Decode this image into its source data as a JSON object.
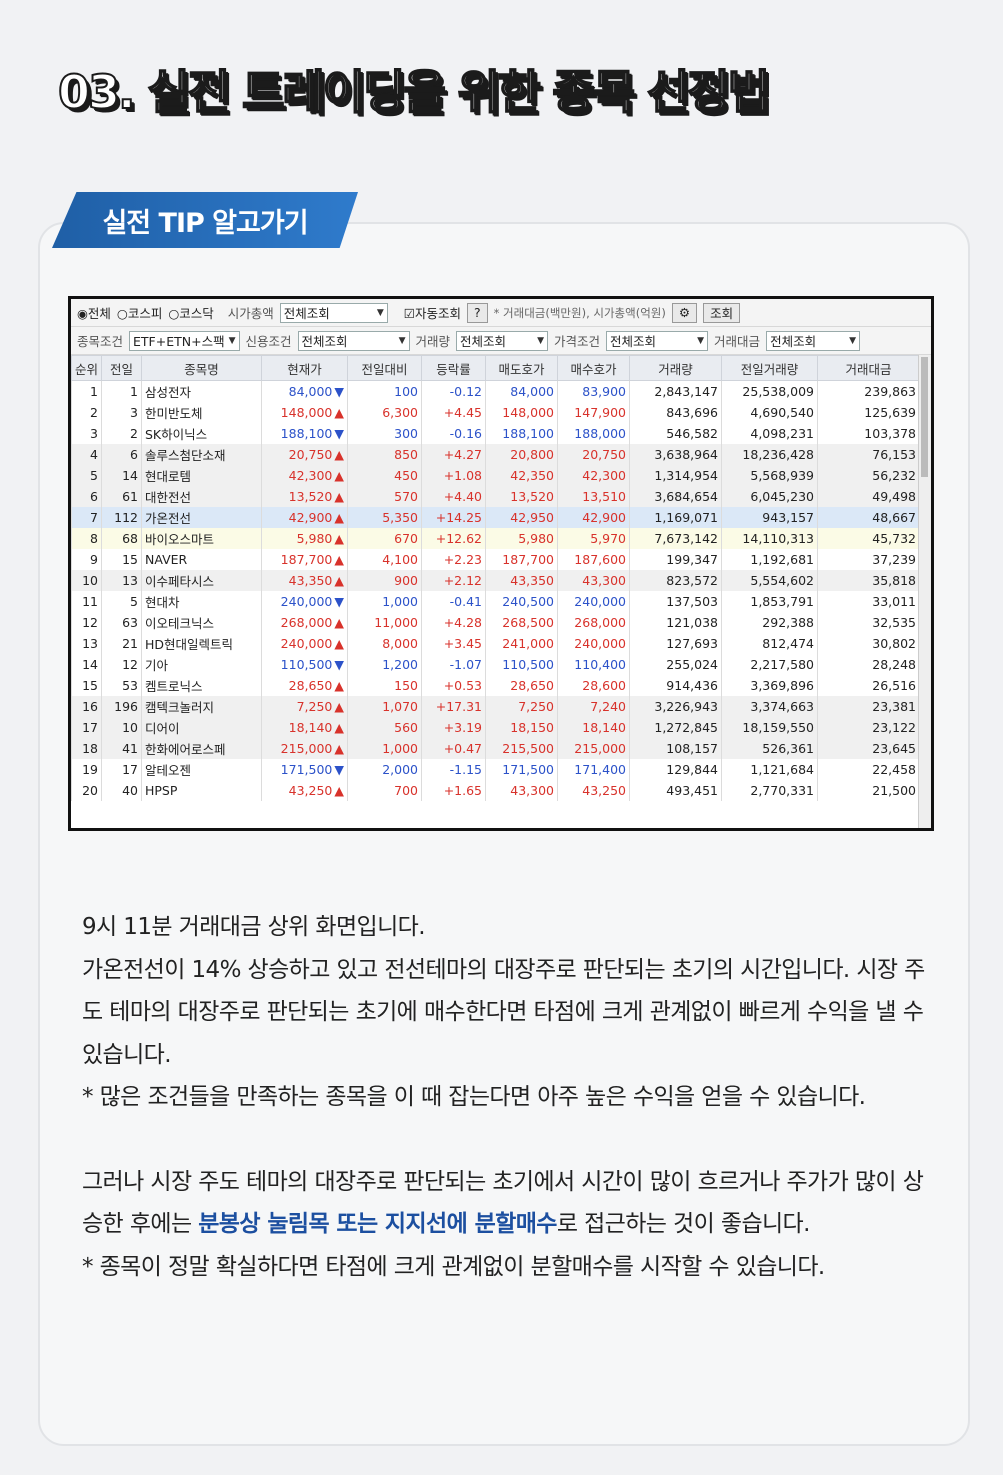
{
  "page_title": "03. 실전 트레이딩을 위한 종목 선정법",
  "tip_label": "실전 TIP 알고가기",
  "controls": {
    "row1": {
      "radio_all": "◉전체",
      "radio_kospi": "○코스피",
      "radio_kosdaq": "○코스닥",
      "market_cap_label": "시가총액",
      "market_cap_value": "전체조회",
      "auto_check": "☑자동조회",
      "help": "?",
      "unit_note": "* 거래대금(백만원), 시가총액(억원)",
      "settings": "⚙",
      "query": "조회"
    },
    "row2": {
      "item_cond_label": "종목조건",
      "item_cond_value": "ETF+ETN+스팩",
      "credit_label": "신용조건",
      "credit_value": "전체조회",
      "volume_label": "거래량",
      "volume_value": "전체조회",
      "price_label": "가격조건",
      "price_value": "전체조회",
      "amount_label": "거래대금",
      "amount_value": "전체조회"
    }
  },
  "table": {
    "headers": [
      "순위",
      "전일",
      "종목명",
      "현재가",
      "전일대비",
      "등락률",
      "매도호가",
      "매수호가",
      "거래량",
      "전일거래량",
      "거래대금"
    ],
    "rows": [
      {
        "rank": "1",
        "prev": "1",
        "name": "삼성전자",
        "price": "84,000",
        "dir": "▼",
        "diff": "100",
        "rate": "-0.12",
        "ask": "84,000",
        "bid": "83,900",
        "vol": "2,843,147",
        "pvol": "25,538,009",
        "amt": "239,863",
        "cls": "dn",
        "style": ""
      },
      {
        "rank": "2",
        "prev": "3",
        "name": "한미반도체",
        "price": "148,000",
        "dir": "▲",
        "diff": "6,300",
        "rate": "+4.45",
        "ask": "148,000",
        "bid": "147,900",
        "vol": "843,696",
        "pvol": "4,690,540",
        "amt": "125,639",
        "cls": "up",
        "style": ""
      },
      {
        "rank": "3",
        "prev": "2",
        "name": "SK하이닉스",
        "price": "188,100",
        "dir": "▼",
        "diff": "300",
        "rate": "-0.16",
        "ask": "188,100",
        "bid": "188,000",
        "vol": "546,582",
        "pvol": "4,098,231",
        "amt": "103,378",
        "cls": "dn",
        "style": ""
      },
      {
        "rank": "4",
        "prev": "6",
        "name": "솔루스첨단소재",
        "price": "20,750",
        "dir": "▲",
        "diff": "850",
        "rate": "+4.27",
        "ask": "20,800",
        "bid": "20,750",
        "vol": "3,638,964",
        "pvol": "18,236,428",
        "amt": "76,153",
        "cls": "up",
        "style": "shade"
      },
      {
        "rank": "5",
        "prev": "14",
        "name": "현대로템",
        "price": "42,300",
        "dir": "▲",
        "diff": "450",
        "rate": "+1.08",
        "ask": "42,350",
        "bid": "42,300",
        "vol": "1,314,954",
        "pvol": "5,568,939",
        "amt": "56,232",
        "cls": "up",
        "style": "shade"
      },
      {
        "rank": "6",
        "prev": "61",
        "name": "대한전선",
        "price": "13,520",
        "dir": "▲",
        "diff": "570",
        "rate": "+4.40",
        "ask": "13,520",
        "bid": "13,510",
        "vol": "3,684,654",
        "pvol": "6,045,230",
        "amt": "49,498",
        "cls": "up",
        "style": "shade"
      },
      {
        "rank": "7",
        "prev": "112",
        "name": "가온전선",
        "price": "42,900",
        "dir": "▲",
        "diff": "5,350",
        "rate": "+14.25",
        "ask": "42,950",
        "bid": "42,900",
        "vol": "1,169,071",
        "pvol": "943,157",
        "amt": "48,667",
        "cls": "up",
        "style": "hl"
      },
      {
        "rank": "8",
        "prev": "68",
        "name": "바이오스마트",
        "price": "5,980",
        "dir": "▲",
        "diff": "670",
        "rate": "+12.62",
        "ask": "5,980",
        "bid": "5,970",
        "vol": "7,673,142",
        "pvol": "14,110,313",
        "amt": "45,732",
        "cls": "up",
        "style": "yellow"
      },
      {
        "rank": "9",
        "prev": "15",
        "name": "NAVER",
        "price": "187,700",
        "dir": "▲",
        "diff": "4,100",
        "rate": "+2.23",
        "ask": "187,700",
        "bid": "187,600",
        "vol": "199,347",
        "pvol": "1,192,681",
        "amt": "37,239",
        "cls": "up",
        "style": ""
      },
      {
        "rank": "10",
        "prev": "13",
        "name": "이수페타시스",
        "price": "43,350",
        "dir": "▲",
        "diff": "900",
        "rate": "+2.12",
        "ask": "43,350",
        "bid": "43,300",
        "vol": "823,572",
        "pvol": "5,554,602",
        "amt": "35,818",
        "cls": "up",
        "style": "shade"
      },
      {
        "rank": "11",
        "prev": "5",
        "name": "현대차",
        "price": "240,000",
        "dir": "▼",
        "diff": "1,000",
        "rate": "-0.41",
        "ask": "240,500",
        "bid": "240,000",
        "vol": "137,503",
        "pvol": "1,853,791",
        "amt": "33,011",
        "cls": "dn",
        "style": ""
      },
      {
        "rank": "12",
        "prev": "63",
        "name": "이오테크닉스",
        "price": "268,000",
        "dir": "▲",
        "diff": "11,000",
        "rate": "+4.28",
        "ask": "268,500",
        "bid": "268,000",
        "vol": "121,038",
        "pvol": "292,388",
        "amt": "32,535",
        "cls": "up",
        "style": ""
      },
      {
        "rank": "13",
        "prev": "21",
        "name": "HD현대일렉트릭",
        "price": "240,000",
        "dir": "▲",
        "diff": "8,000",
        "rate": "+3.45",
        "ask": "241,000",
        "bid": "240,000",
        "vol": "127,693",
        "pvol": "812,474",
        "amt": "30,802",
        "cls": "up",
        "style": ""
      },
      {
        "rank": "14",
        "prev": "12",
        "name": "기아",
        "price": "110,500",
        "dir": "▼",
        "diff": "1,200",
        "rate": "-1.07",
        "ask": "110,500",
        "bid": "110,400",
        "vol": "255,024",
        "pvol": "2,217,580",
        "amt": "28,248",
        "cls": "dn",
        "style": ""
      },
      {
        "rank": "15",
        "prev": "53",
        "name": "켐트로닉스",
        "price": "28,650",
        "dir": "▲",
        "diff": "150",
        "rate": "+0.53",
        "ask": "28,650",
        "bid": "28,600",
        "vol": "914,436",
        "pvol": "3,369,896",
        "amt": "26,516",
        "cls": "up",
        "style": ""
      },
      {
        "rank": "16",
        "prev": "196",
        "name": "캠텍크놀러지",
        "price": "7,250",
        "dir": "▲",
        "diff": "1,070",
        "rate": "+17.31",
        "ask": "7,250",
        "bid": "7,240",
        "vol": "3,226,943",
        "pvol": "3,374,663",
        "amt": "23,381",
        "cls": "up",
        "style": "shade"
      },
      {
        "rank": "17",
        "prev": "10",
        "name": "디어이",
        "price": "18,140",
        "dir": "▲",
        "diff": "560",
        "rate": "+3.19",
        "ask": "18,150",
        "bid": "18,140",
        "vol": "1,272,845",
        "pvol": "18,159,550",
        "amt": "23,122",
        "cls": "up",
        "style": "shade"
      },
      {
        "rank": "18",
        "prev": "41",
        "name": "한화에어로스페",
        "price": "215,000",
        "dir": "▲",
        "diff": "1,000",
        "rate": "+0.47",
        "ask": "215,500",
        "bid": "215,000",
        "vol": "108,157",
        "pvol": "526,361",
        "amt": "23,645",
        "cls": "up",
        "style": "shade"
      },
      {
        "rank": "19",
        "prev": "17",
        "name": "알테오젠",
        "price": "171,500",
        "dir": "▼",
        "diff": "2,000",
        "rate": "-1.15",
        "ask": "171,500",
        "bid": "171,400",
        "vol": "129,844",
        "pvol": "1,121,684",
        "amt": "22,458",
        "cls": "dn",
        "style": ""
      },
      {
        "rank": "20",
        "prev": "40",
        "name": "HPSP",
        "price": "43,250",
        "dir": "▲",
        "diff": "700",
        "rate": "+1.65",
        "ask": "43,300",
        "bid": "43,250",
        "vol": "493,451",
        "pvol": "2,770,331",
        "amt": "21,500",
        "cls": "up",
        "style": ""
      }
    ]
  },
  "body": {
    "p1": "9시 11분 거래대금 상위 화면입니다.",
    "p2": "가온전선이 14% 상승하고 있고 전선테마의 대장주로 판단되는 초기의 시간입니다. 시장 주도 테마의 대장주로 판단되는 초기에 매수한다면 타점에 크게 관계없이 빠르게 수익을 낼 수 있습니다.",
    "p3": "* 많은 조건들을 만족하는 종목을 이 때 잡는다면 아주 높은 수익을 얻을 수 있습니다.",
    "p4_before": "그러나 시장 주도 테마의 대장주로 판단되는 초기에서 시간이 많이 흐르거나 주가가 많이 상승한 후에는 ",
    "p4_em": "분봉상 눌림목 또는 지지선에 분할매수",
    "p4_after": "로 접근하는 것이 좋습니다.",
    "p5": "* 종목이 정말 확실하다면 타점에 크게 관계없이 분할매수를 시작할 수 있습니다."
  }
}
